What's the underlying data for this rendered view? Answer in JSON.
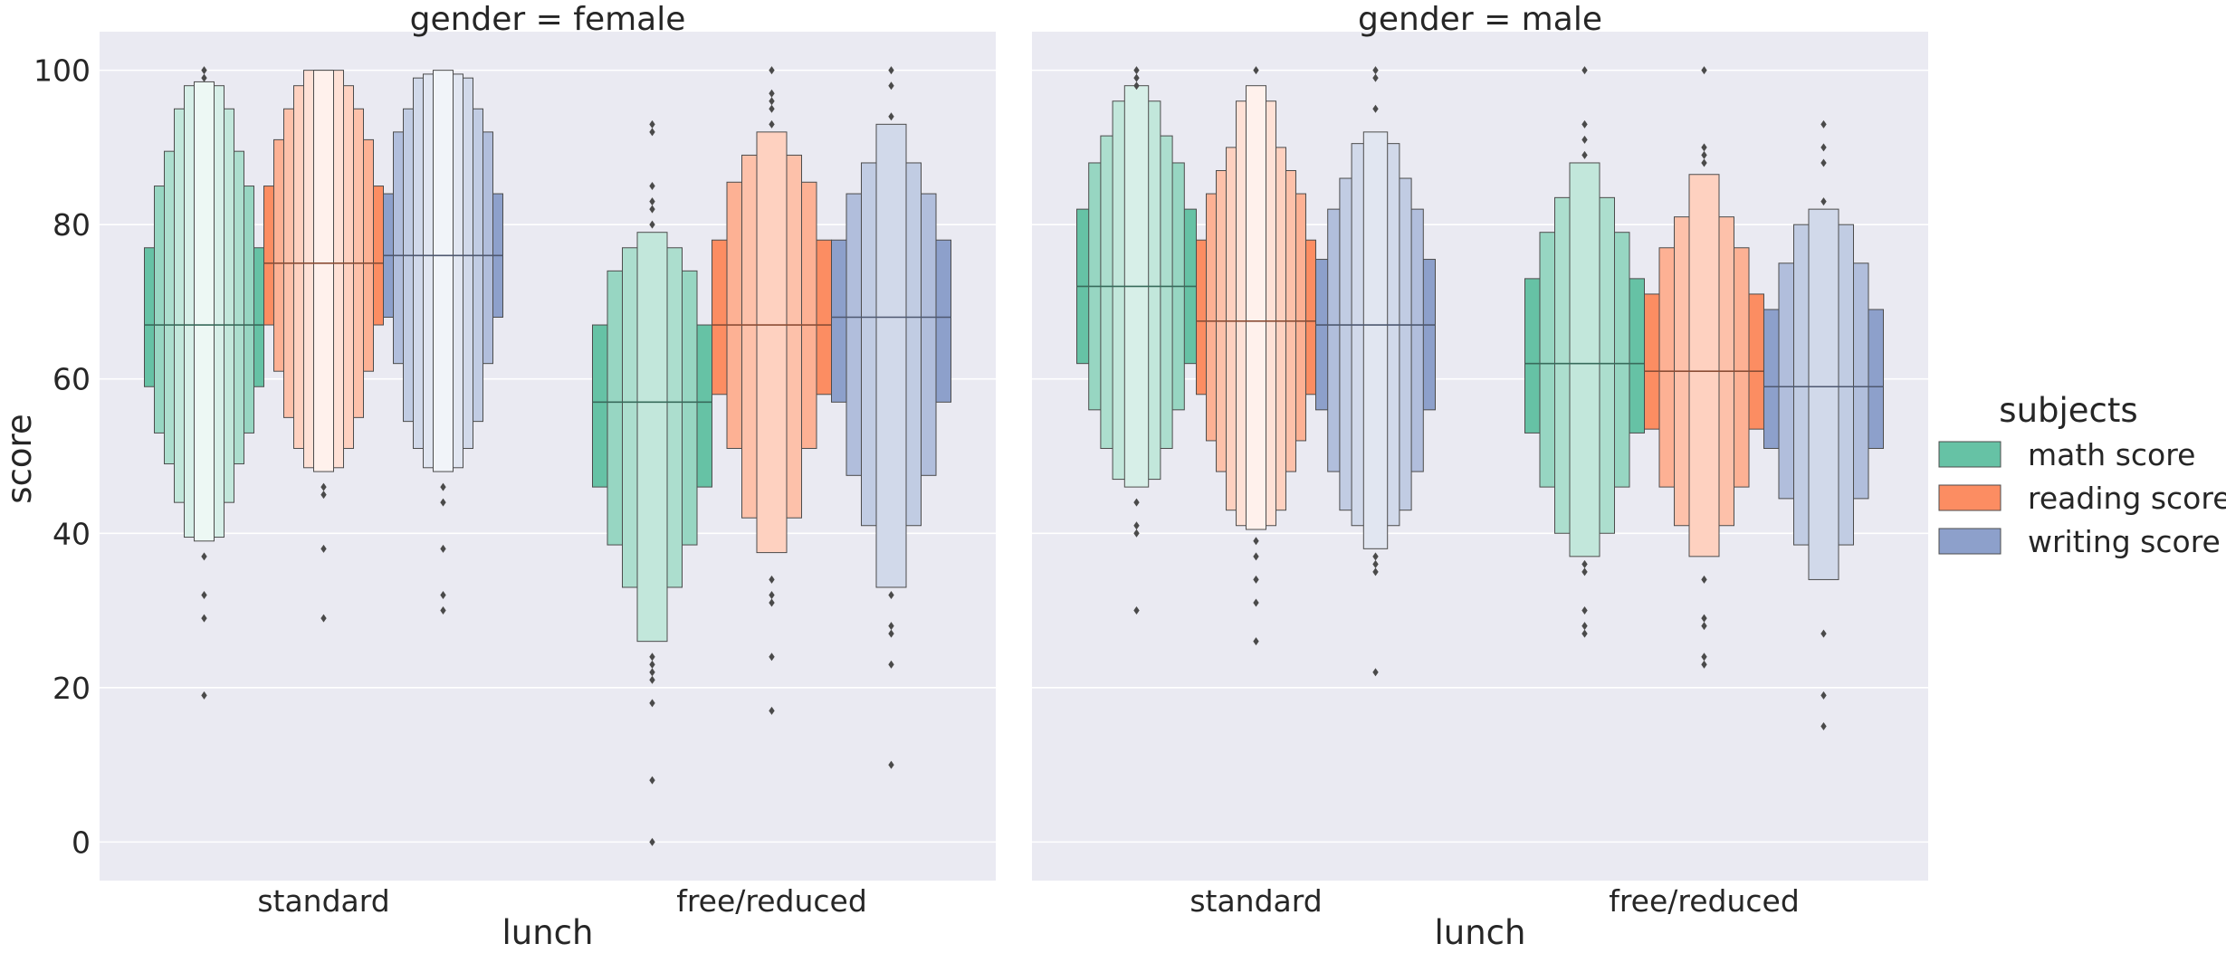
{
  "chart_data": {
    "type": "boxen",
    "xlabel": "lunch",
    "ylabel": "score",
    "ylim": [
      -5,
      105
    ],
    "yticks": [
      0,
      20,
      40,
      60,
      80,
      100
    ],
    "grid": true,
    "categories": [
      "standard",
      "free/reduced"
    ],
    "legend": {
      "title": "subjects",
      "placement": "right",
      "entries": [
        {
          "label": "math score",
          "color": "#66c2a5"
        },
        {
          "label": "reading score",
          "color": "#fc8d62"
        },
        {
          "label": "writing score",
          "color": "#8da0cb"
        }
      ]
    },
    "facets": [
      {
        "title": "gender = female",
        "groups": [
          {
            "category": "standard",
            "boxes": [
              {
                "subject": "math score",
                "median": 67,
                "levels": [
                  [
                    59,
                    77
                  ],
                  [
                    53,
                    85
                  ],
                  [
                    49,
                    89.5
                  ],
                  [
                    44,
                    95
                  ],
                  [
                    39.5,
                    98
                  ],
                  [
                    39,
                    98.5
                  ]
                ],
                "outliers": [
                  99,
                  100,
                  37,
                  32,
                  29,
                  19
                ]
              },
              {
                "subject": "reading score",
                "median": 75,
                "levels": [
                  [
                    67,
                    85
                  ],
                  [
                    61,
                    91
                  ],
                  [
                    55,
                    95
                  ],
                  [
                    51,
                    98
                  ],
                  [
                    48.5,
                    100
                  ],
                  [
                    48,
                    100
                  ]
                ],
                "outliers": [
                  46,
                  45,
                  38,
                  29
                ]
              },
              {
                "subject": "writing score",
                "median": 76,
                "levels": [
                  [
                    68,
                    84
                  ],
                  [
                    62,
                    92
                  ],
                  [
                    54.5,
                    95
                  ],
                  [
                    51,
                    99
                  ],
                  [
                    48.5,
                    99.5
                  ],
                  [
                    48,
                    100
                  ]
                ],
                "outliers": [
                  46,
                  44,
                  38,
                  32,
                  30
                ]
              }
            ]
          },
          {
            "category": "free/reduced",
            "boxes": [
              {
                "subject": "math score",
                "median": 57,
                "levels": [
                  [
                    46,
                    67
                  ],
                  [
                    38.5,
                    74
                  ],
                  [
                    33,
                    77
                  ],
                  [
                    26,
                    79
                  ]
                ],
                "outliers": [
                  93,
                  92,
                  85,
                  83,
                  82,
                  80,
                  24,
                  23,
                  22,
                  21,
                  18,
                  8,
                  0
                ]
              },
              {
                "subject": "reading score",
                "median": 67,
                "levels": [
                  [
                    58,
                    78
                  ],
                  [
                    51,
                    85.5
                  ],
                  [
                    42,
                    89
                  ],
                  [
                    37.5,
                    92
                  ]
                ],
                "outliers": [
                  100,
                  97,
                  96,
                  95,
                  93,
                  34,
                  32,
                  31,
                  24,
                  17
                ]
              },
              {
                "subject": "writing score",
                "median": 68,
                "levels": [
                  [
                    57,
                    78
                  ],
                  [
                    47.5,
                    84
                  ],
                  [
                    41,
                    88
                  ],
                  [
                    33,
                    93
                  ]
                ],
                "outliers": [
                  100,
                  98,
                  94,
                  32,
                  28,
                  27,
                  23,
                  10
                ]
              }
            ]
          }
        ]
      },
      {
        "title": "gender = male",
        "groups": [
          {
            "category": "standard",
            "boxes": [
              {
                "subject": "math score",
                "median": 72,
                "levels": [
                  [
                    62,
                    82
                  ],
                  [
                    56,
                    88
                  ],
                  [
                    51,
                    91.5
                  ],
                  [
                    47,
                    96
                  ],
                  [
                    46,
                    98
                  ]
                ],
                "outliers": [
                  100,
                  99,
                  98,
                  44,
                  41,
                  40,
                  30
                ]
              },
              {
                "subject": "reading score",
                "median": 67.5,
                "levels": [
                  [
                    58,
                    78
                  ],
                  [
                    52,
                    84
                  ],
                  [
                    48,
                    87
                  ],
                  [
                    43,
                    90
                  ],
                  [
                    41,
                    96
                  ],
                  [
                    40.5,
                    98
                  ]
                ],
                "outliers": [
                  100,
                  39,
                  37,
                  34,
                  31,
                  26
                ]
              },
              {
                "subject": "writing score",
                "median": 67,
                "levels": [
                  [
                    56,
                    75.5
                  ],
                  [
                    48,
                    82
                  ],
                  [
                    43,
                    86
                  ],
                  [
                    41,
                    90.5
                  ],
                  [
                    38,
                    92
                  ]
                ],
                "outliers": [
                  100,
                  99,
                  95,
                  37,
                  36,
                  35,
                  22
                ]
              }
            ]
          },
          {
            "category": "free/reduced",
            "boxes": [
              {
                "subject": "math score",
                "median": 62,
                "levels": [
                  [
                    53,
                    73
                  ],
                  [
                    46,
                    79
                  ],
                  [
                    40,
                    83.5
                  ],
                  [
                    37,
                    88
                  ]
                ],
                "outliers": [
                  100,
                  93,
                  91,
                  89,
                  36,
                  35,
                  30,
                  28,
                  27
                ]
              },
              {
                "subject": "reading score",
                "median": 61,
                "levels": [
                  [
                    53.5,
                    71
                  ],
                  [
                    46,
                    77
                  ],
                  [
                    41,
                    81
                  ],
                  [
                    37,
                    86.5
                  ]
                ],
                "outliers": [
                  100,
                  90,
                  89,
                  88,
                  34,
                  29,
                  28,
                  24,
                  23
                ]
              },
              {
                "subject": "writing score",
                "median": 59,
                "levels": [
                  [
                    51,
                    69
                  ],
                  [
                    44.5,
                    75
                  ],
                  [
                    38.5,
                    80
                  ],
                  [
                    34,
                    82
                  ]
                ],
                "outliers": [
                  93,
                  90,
                  88,
                  83,
                  27,
                  19,
                  15
                ]
              }
            ]
          }
        ]
      }
    ]
  }
}
